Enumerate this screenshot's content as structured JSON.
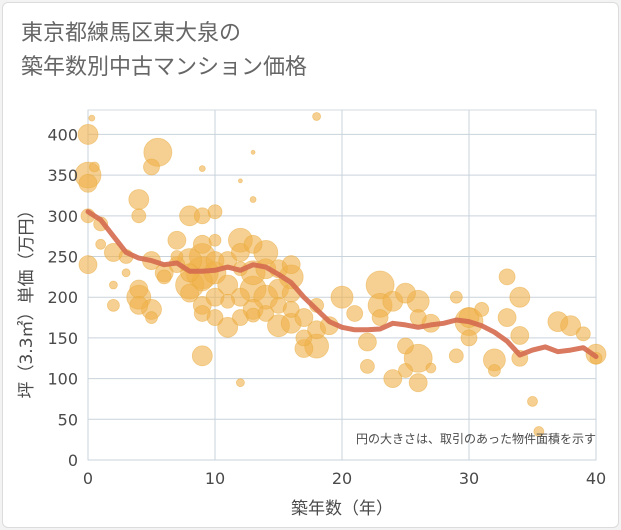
{
  "title_line1": "東京都練馬区東大泉の",
  "title_line2": "築年数別中古マンション価格",
  "chart_data": {
    "type": "scatter",
    "xlabel": "築年数（年）",
    "ylabel": "坪（3.3㎡）単価（万円）",
    "xlim": [
      0,
      40
    ],
    "ylim": [
      0,
      430
    ],
    "xticks": [
      0,
      10,
      20,
      30,
      40
    ],
    "yticks": [
      0,
      50,
      100,
      150,
      200,
      250,
      300,
      350,
      400
    ],
    "grid": true,
    "note": "円の大きさは、取引のあった物件面積を示す",
    "colors": {
      "bubble": "#f0b04a",
      "line": "#d46a4f",
      "grid": "#c9d3dc"
    },
    "points": [
      [
        0,
        400,
        10
      ],
      [
        0,
        350,
        13
      ],
      [
        0,
        340,
        9
      ],
      [
        0,
        300,
        7
      ],
      [
        0,
        240,
        9
      ],
      [
        0.5,
        360,
        5
      ],
      [
        1,
        290,
        7
      ],
      [
        1,
        265,
        5
      ],
      [
        0.3,
        420,
        3
      ],
      [
        2,
        255,
        9
      ],
      [
        2,
        190,
        6
      ],
      [
        2,
        215,
        4
      ],
      [
        3,
        250,
        7
      ],
      [
        3,
        230,
        4
      ],
      [
        4,
        320,
        10
      ],
      [
        4,
        300,
        7
      ],
      [
        4,
        210,
        9
      ],
      [
        4,
        200,
        12
      ],
      [
        4,
        190,
        9
      ],
      [
        5,
        360,
        8
      ],
      [
        5,
        175,
        6
      ],
      [
        5,
        185,
        10
      ],
      [
        5,
        245,
        9
      ],
      [
        5.5,
        378,
        14
      ],
      [
        6,
        230,
        9
      ],
      [
        6,
        225,
        7
      ],
      [
        7,
        270,
        9
      ],
      [
        7,
        250,
        6
      ],
      [
        7,
        240,
        8
      ],
      [
        8,
        300,
        10
      ],
      [
        8,
        245,
        12
      ],
      [
        8,
        215,
        14
      ],
      [
        8,
        230,
        9
      ],
      [
        8,
        205,
        9
      ],
      [
        9,
        300,
        8
      ],
      [
        9,
        265,
        9
      ],
      [
        9,
        250,
        13
      ],
      [
        9,
        230,
        16
      ],
      [
        9,
        220,
        10
      ],
      [
        9,
        190,
        9
      ],
      [
        9,
        180,
        8
      ],
      [
        9,
        128,
        10
      ],
      [
        9,
        358,
        3
      ],
      [
        10,
        305,
        7
      ],
      [
        10,
        270,
        6
      ],
      [
        10,
        245,
        9
      ],
      [
        10,
        230,
        11
      ],
      [
        10,
        200,
        9
      ],
      [
        10,
        175,
        8
      ],
      [
        11,
        245,
        9
      ],
      [
        11,
        215,
        10
      ],
      [
        11,
        195,
        7
      ],
      [
        11,
        163,
        10
      ],
      [
        12,
        270,
        12
      ],
      [
        12,
        255,
        9
      ],
      [
        12,
        235,
        7
      ],
      [
        12,
        200,
        9
      ],
      [
        12,
        175,
        8
      ],
      [
        12,
        95,
        4
      ],
      [
        12,
        343,
        2
      ],
      [
        13,
        265,
        9
      ],
      [
        13,
        230,
        12
      ],
      [
        13,
        210,
        13
      ],
      [
        13,
        185,
        10
      ],
      [
        13,
        178,
        7
      ],
      [
        13,
        320,
        3
      ],
      [
        13,
        378,
        2
      ],
      [
        14,
        255,
        12
      ],
      [
        14,
        235,
        10
      ],
      [
        14,
        200,
        12
      ],
      [
        14,
        180,
        8
      ],
      [
        15,
        235,
        9
      ],
      [
        15,
        210,
        10
      ],
      [
        15,
        190,
        8
      ],
      [
        15,
        165,
        11
      ],
      [
        16,
        240,
        9
      ],
      [
        16,
        225,
        12
      ],
      [
        16,
        205,
        9
      ],
      [
        16,
        185,
        8
      ],
      [
        16,
        168,
        10
      ],
      [
        17,
        175,
        9
      ],
      [
        17,
        150,
        8
      ],
      [
        17,
        137,
        9
      ],
      [
        18,
        140,
        12
      ],
      [
        18,
        160,
        9
      ],
      [
        18,
        190,
        7
      ],
      [
        18,
        422,
        4
      ],
      [
        19,
        165,
        9
      ],
      [
        20,
        200,
        11
      ],
      [
        21,
        180,
        8
      ],
      [
        22,
        145,
        9
      ],
      [
        22,
        115,
        7
      ],
      [
        23,
        215,
        14
      ],
      [
        23,
        190,
        12
      ],
      [
        23,
        175,
        8
      ],
      [
        24,
        195,
        10
      ],
      [
        24,
        100,
        9
      ],
      [
        25,
        205,
        10
      ],
      [
        25,
        140,
        8
      ],
      [
        25,
        110,
        7
      ],
      [
        26,
        195,
        11
      ],
      [
        26,
        175,
        8
      ],
      [
        26,
        125,
        14
      ],
      [
        26,
        95,
        9
      ],
      [
        27,
        168,
        9
      ],
      [
        27,
        113,
        5
      ],
      [
        29,
        128,
        7
      ],
      [
        29,
        200,
        6
      ],
      [
        30,
        175,
        10
      ],
      [
        30,
        170,
        14
      ],
      [
        30,
        150,
        8
      ],
      [
        31,
        185,
        7
      ],
      [
        32,
        123,
        11
      ],
      [
        32,
        110,
        6
      ],
      [
        33,
        225,
        8
      ],
      [
        33,
        175,
        9
      ],
      [
        34,
        200,
        10
      ],
      [
        34,
        153,
        9
      ],
      [
        34,
        125,
        8
      ],
      [
        35,
        72,
        5
      ],
      [
        35.5,
        35,
        5
      ],
      [
        37,
        170,
        10
      ],
      [
        38,
        165,
        10
      ],
      [
        39,
        155,
        7
      ],
      [
        40,
        130,
        10
      ],
      [
        40,
        125,
        6
      ]
    ],
    "line": [
      [
        0,
        305
      ],
      [
        1,
        295
      ],
      [
        2,
        275
      ],
      [
        3,
        255
      ],
      [
        4,
        248
      ],
      [
        5,
        245
      ],
      [
        6,
        240
      ],
      [
        7,
        242
      ],
      [
        8,
        232
      ],
      [
        9,
        232
      ],
      [
        10,
        233
      ],
      [
        11,
        237
      ],
      [
        12,
        233
      ],
      [
        13,
        240
      ],
      [
        14,
        237
      ],
      [
        15,
        228
      ],
      [
        16,
        218
      ],
      [
        17,
        200
      ],
      [
        18,
        185
      ],
      [
        19,
        170
      ],
      [
        20,
        163
      ],
      [
        21,
        160
      ],
      [
        22,
        160
      ],
      [
        23,
        161
      ],
      [
        24,
        168
      ],
      [
        25,
        166
      ],
      [
        26,
        163
      ],
      [
        27,
        166
      ],
      [
        28,
        168
      ],
      [
        29,
        172
      ],
      [
        30,
        170
      ],
      [
        31,
        165
      ],
      [
        32,
        157
      ],
      [
        33,
        146
      ],
      [
        34,
        129
      ],
      [
        35,
        135
      ],
      [
        36,
        139
      ],
      [
        37,
        133
      ],
      [
        38,
        135
      ],
      [
        39,
        138
      ],
      [
        40,
        127
      ]
    ]
  }
}
